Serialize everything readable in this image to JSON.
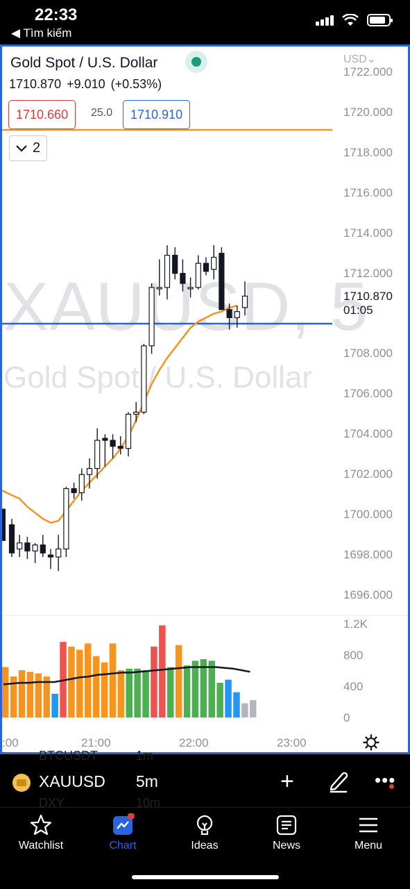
{
  "status": {
    "time": "22:33",
    "back": "◀ Tìm kiếm"
  },
  "header": {
    "title": "Gold Spot / U.S. Dollar",
    "last": "1710.870",
    "change": "+9.010",
    "change_pct": "(+0.53%)",
    "bid": "1710.660",
    "spread": "25.0",
    "ask": "1710.910",
    "collapse_count": "2",
    "currency": "USD⌄"
  },
  "watermark": {
    "line1": "XAUUSD, 5",
    "line2": "Gold Spot / U.S. Dollar"
  },
  "price_axis": [
    "1722.000",
    "1720.000",
    "1718.000",
    "1716.000",
    "1714.000",
    "1712.000",
    "1708.000",
    "1706.000",
    "1704.000",
    "1702.000",
    "1700.000",
    "1698.000",
    "1696.000"
  ],
  "last_price_label": {
    "price": "1710.870",
    "countdown": "01:05"
  },
  "volume_axis": [
    "1.2K",
    "800",
    "400",
    "0"
  ],
  "time_axis": [
    ":00",
    "21:00",
    "22:00",
    "23:00"
  ],
  "colors": {
    "up_volume": "#4caf50",
    "down_volume": "#ef5350",
    "orange": "#f7941d",
    "accent": "#2a63e0"
  },
  "chart_data": {
    "type": "candlestick",
    "interval": "5m",
    "candles": [
      {
        "o": 1699.5,
        "h": 1699.8,
        "l": 1697.9,
        "c": 1698.1
      },
      {
        "o": 1698.3,
        "h": 1699.0,
        "l": 1697.9,
        "c": 1698.6
      },
      {
        "o": 1698.6,
        "h": 1698.9,
        "l": 1697.8,
        "c": 1698.2
      },
      {
        "o": 1698.2,
        "h": 1698.6,
        "l": 1697.6,
        "c": 1698.5
      },
      {
        "o": 1698.5,
        "h": 1699.0,
        "l": 1697.9,
        "c": 1698.1
      },
      {
        "o": 1698.0,
        "h": 1698.3,
        "l": 1697.3,
        "c": 1697.9
      },
      {
        "o": 1697.9,
        "h": 1699.0,
        "l": 1697.2,
        "c": 1698.3
      },
      {
        "o": 1698.3,
        "h": 1701.4,
        "l": 1697.9,
        "c": 1701.3
      },
      {
        "o": 1701.3,
        "h": 1701.6,
        "l": 1700.8,
        "c": 1701.1
      },
      {
        "o": 1701.1,
        "h": 1702.3,
        "l": 1700.7,
        "c": 1702.0
      },
      {
        "o": 1702.0,
        "h": 1702.8,
        "l": 1701.3,
        "c": 1702.3
      },
      {
        "o": 1702.3,
        "h": 1704.3,
        "l": 1701.8,
        "c": 1703.7
      },
      {
        "o": 1703.8,
        "h": 1704.0,
        "l": 1702.4,
        "c": 1703.7
      },
      {
        "o": 1703.7,
        "h": 1704.0,
        "l": 1702.8,
        "c": 1703.4
      },
      {
        "o": 1703.4,
        "h": 1703.9,
        "l": 1703.0,
        "c": 1703.3
      },
      {
        "o": 1703.3,
        "h": 1705.1,
        "l": 1702.9,
        "c": 1705.0
      },
      {
        "o": 1705.0,
        "h": 1705.6,
        "l": 1704.6,
        "c": 1705.1
      },
      {
        "o": 1705.1,
        "h": 1708.5,
        "l": 1705.0,
        "c": 1708.4
      },
      {
        "o": 1708.4,
        "h": 1711.5,
        "l": 1708.0,
        "c": 1711.3
      },
      {
        "o": 1711.3,
        "h": 1712.7,
        "l": 1710.9,
        "c": 1711.3
      },
      {
        "o": 1711.3,
        "h": 1713.4,
        "l": 1710.7,
        "c": 1712.9
      },
      {
        "o": 1712.9,
        "h": 1713.3,
        "l": 1711.7,
        "c": 1712.0
      },
      {
        "o": 1712.0,
        "h": 1712.7,
        "l": 1711.1,
        "c": 1711.5
      },
      {
        "o": 1711.3,
        "h": 1711.8,
        "l": 1710.8,
        "c": 1711.3
      },
      {
        "o": 1711.3,
        "h": 1712.9,
        "l": 1711.2,
        "c": 1712.5
      },
      {
        "o": 1712.5,
        "h": 1712.8,
        "l": 1711.9,
        "c": 1712.1
      },
      {
        "o": 1712.2,
        "h": 1713.4,
        "l": 1711.7,
        "c": 1712.8
      },
      {
        "o": 1713.0,
        "h": 1713.3,
        "l": 1710.3,
        "c": 1710.2
      },
      {
        "o": 1710.2,
        "h": 1710.5,
        "l": 1709.2,
        "c": 1709.8
      },
      {
        "o": 1709.8,
        "h": 1710.4,
        "l": 1709.3,
        "c": 1710.1
      },
      {
        "o": 1710.3,
        "h": 1711.6,
        "l": 1709.9,
        "c": 1710.87
      }
    ],
    "extra_left_candle": {
      "o": 1700.3,
      "h": 1700.3,
      "l": 1698.4,
      "c": 1698.7
    },
    "ma": [
      1701.2,
      1700.8,
      1700.4,
      1700.1,
      1699.8,
      1699.6,
      1699.7,
      1700.2,
      1700.7,
      1701.2,
      1701.6,
      1702.0,
      1702.4,
      1702.8,
      1703.3,
      1703.9,
      1704.7,
      1705.6,
      1706.5,
      1707.2,
      1707.8,
      1708.3,
      1708.8,
      1709.3,
      1709.6,
      1709.8,
      1710.0,
      1710.1,
      1710.3,
      1710.4
    ],
    "volume": [
      {
        "v": 640,
        "d": "up_orange"
      },
      {
        "v": 520,
        "d": "orange"
      },
      {
        "v": 600,
        "d": "orange"
      },
      {
        "v": 580,
        "d": "orange"
      },
      {
        "v": 560,
        "d": "orange"
      },
      {
        "v": 520,
        "d": "orange"
      },
      {
        "v": 300,
        "d": "blue"
      },
      {
        "v": 960,
        "d": "red"
      },
      {
        "v": 900,
        "d": "orange"
      },
      {
        "v": 860,
        "d": "orange"
      },
      {
        "v": 940,
        "d": "orange"
      },
      {
        "v": 780,
        "d": "orange"
      },
      {
        "v": 700,
        "d": "orange"
      },
      {
        "v": 940,
        "d": "orange"
      },
      {
        "v": 600,
        "d": "orange"
      },
      {
        "v": 620,
        "d": "green"
      },
      {
        "v": 620,
        "d": "green"
      },
      {
        "v": 600,
        "d": "green"
      },
      {
        "v": 900,
        "d": "red"
      },
      {
        "v": 1170,
        "d": "red"
      },
      {
        "v": 640,
        "d": "green"
      },
      {
        "v": 920,
        "d": "orange"
      },
      {
        "v": 660,
        "d": "green"
      },
      {
        "v": 720,
        "d": "green"
      },
      {
        "v": 740,
        "d": "green"
      },
      {
        "v": 720,
        "d": "green"
      },
      {
        "v": 440,
        "d": "green"
      },
      {
        "v": 480,
        "d": "blue"
      },
      {
        "v": 320,
        "d": "blue"
      },
      {
        "v": 180,
        "d": "grey"
      },
      {
        "v": 220,
        "d": "grey"
      }
    ],
    "volume_ma": [
      420,
      430,
      440,
      440,
      450,
      450,
      450,
      470,
      490,
      510,
      520,
      540,
      550,
      560,
      570,
      570,
      580,
      590,
      600,
      610,
      620,
      630,
      640,
      640,
      640,
      640,
      630,
      620,
      600,
      580
    ],
    "ylim": [
      1695,
      1723
    ],
    "volume_ylim": [
      0,
      1300
    ]
  },
  "infobar": {
    "symbol": "XAUUSD",
    "interval": "5m",
    "ghost1": "BTCUSDT",
    "ghost1b": "1m",
    "ghost2": "DXY",
    "ghost2b": "10m"
  },
  "tabs": [
    {
      "label": "Watchlist"
    },
    {
      "label": "Chart"
    },
    {
      "label": "Ideas"
    },
    {
      "label": "News"
    },
    {
      "label": "Menu"
    }
  ]
}
